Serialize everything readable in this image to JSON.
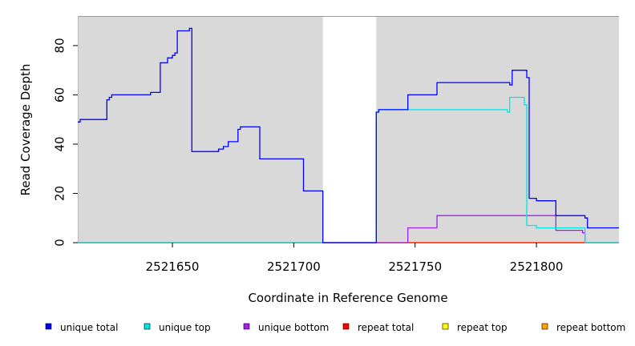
{
  "chart_data": {
    "type": "line",
    "title": "",
    "xlabel": "Coordinate in Reference Genome",
    "ylabel": "Read Coverage Depth",
    "xlim": [
      2521611,
      2521834
    ],
    "ylim": [
      0,
      92
    ],
    "x_ticks": [
      2521650,
      2521700,
      2521750,
      2521800
    ],
    "x_tick_labels": [
      "2521650",
      "2521700",
      "2521750",
      "2521800"
    ],
    "y_ticks": [
      0,
      20,
      40,
      60,
      80
    ],
    "y_tick_labels": [
      "0",
      "20",
      "40",
      "60",
      "80"
    ],
    "background": "#d9d9d9",
    "gap_regions": [
      [
        2521712,
        2521734
      ]
    ],
    "legend_position": "bottom",
    "series": [
      {
        "name": "unique total",
        "color": "#0000ff",
        "x": [
          2521611,
          2521612,
          2521623,
          2521624,
          2521625,
          2521641,
          2521645,
          2521648,
          2521650,
          2521651,
          2521652,
          2521657,
          2521658,
          2521669,
          2521671,
          2521673,
          2521677,
          2521678,
          2521686,
          2521704,
          2521712,
          2521734,
          2521735,
          2521747,
          2521759,
          2521789,
          2521790,
          2521796,
          2521797,
          2521800,
          2521808,
          2521820,
          2521821,
          2521834
        ],
        "y": [
          49,
          50,
          58,
          59,
          60,
          61,
          73,
          75,
          76,
          77,
          86,
          87,
          37,
          38,
          39,
          41,
          46,
          47,
          34,
          21,
          0,
          53,
          54,
          60,
          65,
          64,
          70,
          67,
          18,
          17,
          11,
          10,
          6,
          6
        ]
      },
      {
        "name": "unique top",
        "color": "#00e5e5",
        "x": [
          2521611,
          2521734,
          2521735,
          2521747,
          2521788,
          2521789,
          2521790,
          2521795,
          2521796,
          2521797,
          2521800,
          2521820,
          2521834
        ],
        "y": [
          0,
          53,
          54,
          54,
          53,
          59,
          59,
          56,
          7,
          7,
          6,
          0,
          0
        ]
      },
      {
        "name": "unique bottom",
        "color": "#a020f0",
        "x": [
          2521611,
          2521747,
          2521759,
          2521808,
          2521819,
          2521820,
          2521834
        ],
        "y": [
          0,
          6,
          11,
          5,
          4,
          0,
          0
        ]
      },
      {
        "name": "repeat total",
        "color": "#ff0000",
        "x": [
          2521611,
          2521834
        ],
        "y": [
          0,
          0
        ]
      },
      {
        "name": "repeat top",
        "color": "#ffff00",
        "x": [
          2521611,
          2521834
        ],
        "y": [
          0,
          0
        ]
      },
      {
        "name": "repeat bottom",
        "color": "#ffa500",
        "x": [
          2521611,
          2521834
        ],
        "y": [
          0,
          0
        ]
      }
    ]
  }
}
